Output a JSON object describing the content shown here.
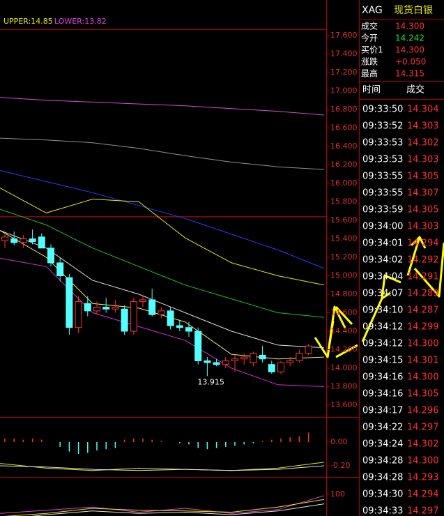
{
  "chart_data": [
    {
      "type": "candlestick",
      "legend": [
        "UPPER:14.85",
        "LOWER:13.82"
      ],
      "legend_colors": [
        "#e8e800",
        "#e040e0"
      ],
      "ylim": [
        13.6,
        17.6
      ],
      "yticks": [
        {
          "value": 17.6,
          "label": "17.600"
        },
        {
          "value": 17.4,
          "label": "17.400"
        },
        {
          "value": 17.2,
          "label": "17.200"
        },
        {
          "value": 17.0,
          "label": "17.000"
        },
        {
          "value": 16.8,
          "label": "16.800"
        },
        {
          "value": 16.6,
          "label": "16.600"
        },
        {
          "value": 16.4,
          "label": "16.400"
        },
        {
          "value": 16.2,
          "label": "16.200"
        },
        {
          "value": 16.0,
          "label": "16.000"
        },
        {
          "value": 15.8,
          "label": "15.800"
        },
        {
          "value": 15.6,
          "label": "15.600"
        },
        {
          "value": 15.4,
          "label": "15.400"
        },
        {
          "value": 15.2,
          "label": "15.200"
        },
        {
          "value": 15.0,
          "label": "15.000"
        },
        {
          "value": 14.8,
          "label": "14.800"
        },
        {
          "value": 14.6,
          "label": "14.600"
        },
        {
          "value": 14.4,
          "label": "14.400"
        },
        {
          "value": 14.2,
          "label": "14.200"
        },
        {
          "value": 14.0,
          "label": "14.000"
        },
        {
          "value": 13.8,
          "label": "13.800"
        },
        {
          "value": 13.6,
          "label": "13.600"
        }
      ],
      "reference_line": 15.64,
      "candles": {
        "open": [
          15.38,
          15.4,
          15.36,
          15.4,
          15.42,
          15.3,
          15.14,
          14.98,
          14.44,
          14.7,
          14.62,
          14.66,
          14.64,
          14.64,
          14.4,
          14.72,
          14.74,
          14.58,
          14.62,
          14.46,
          14.44,
          14.4,
          14.08,
          14.06,
          14.04,
          14.08,
          14.1,
          14.06,
          14.14,
          14.04,
          13.96,
          14.06,
          14.08,
          14.16
        ],
        "high": [
          15.46,
          15.48,
          15.44,
          15.5,
          15.46,
          15.34,
          15.2,
          15.02,
          14.78,
          14.78,
          14.72,
          14.76,
          14.74,
          14.68,
          14.76,
          14.78,
          14.86,
          14.66,
          14.66,
          14.52,
          14.5,
          14.44,
          14.12,
          14.1,
          14.12,
          14.14,
          14.16,
          14.18,
          14.24,
          14.08,
          14.08,
          14.12,
          14.2,
          14.26
        ],
        "low": [
          15.3,
          15.33,
          15.3,
          15.34,
          15.32,
          15.1,
          14.94,
          14.36,
          14.38,
          14.56,
          14.58,
          14.6,
          14.6,
          14.36,
          14.36,
          14.66,
          14.56,
          14.54,
          14.42,
          14.4,
          14.34,
          14.04,
          13.915,
          14.02,
          14.0,
          13.96,
          14.04,
          14.02,
          14.06,
          13.94,
          13.94,
          14.02,
          14.06,
          14.14
        ],
        "close": [
          15.42,
          15.36,
          15.4,
          15.37,
          15.3,
          15.14,
          15.0,
          14.44,
          14.72,
          14.62,
          14.66,
          14.64,
          14.66,
          14.4,
          14.72,
          14.74,
          14.58,
          14.62,
          14.46,
          14.44,
          14.4,
          14.08,
          14.06,
          14.04,
          14.08,
          14.1,
          14.12,
          14.16,
          14.1,
          13.96,
          14.06,
          14.08,
          14.16,
          14.24
        ]
      },
      "annotation": {
        "text": "13.915",
        "candle": 22
      },
      "up_color": "#ff3232",
      "down_color": "#54ffff",
      "series": [
        {
          "color": "#d050d0",
          "values": [
            16.93,
            16.9,
            16.88,
            16.86,
            16.84,
            16.81,
            16.78,
            16.74
          ]
        },
        {
          "color": "#909090",
          "values": [
            16.49,
            16.47,
            16.44,
            16.38,
            16.3,
            16.23,
            16.18,
            16.15
          ]
        },
        {
          "color": "#2040ff",
          "values": [
            16.14,
            16.02,
            15.9,
            15.76,
            15.62,
            15.45,
            15.28,
            15.08
          ]
        },
        {
          "color": "#e8e800",
          "values": [
            15.95,
            15.68,
            15.83,
            15.8,
            15.41,
            15.14,
            15.0,
            14.9
          ]
        },
        {
          "color": "#20c020",
          "values": [
            15.72,
            15.55,
            15.3,
            15.1,
            14.9,
            14.75,
            14.6,
            14.55
          ]
        },
        {
          "color": "#e0e0e0",
          "values": [
            15.49,
            15.3,
            14.95,
            14.8,
            14.6,
            14.4,
            14.25,
            14.22
          ]
        },
        {
          "color": "#f0f060",
          "values": [
            15.49,
            15.2,
            14.7,
            14.65,
            14.5,
            14.15,
            14.1,
            14.12
          ]
        },
        {
          "color": "#d030d0",
          "values": [
            15.19,
            15.1,
            14.6,
            14.45,
            14.3,
            14.0,
            13.82,
            13.8
          ]
        }
      ]
    },
    {
      "type": "histogram-lines",
      "ylim": [
        -0.3,
        0.2
      ],
      "yticks": [
        {
          "value": 0,
          "label": "0.00"
        },
        {
          "value": -0.2,
          "label": "-0.20"
        }
      ],
      "values": [
        0.03,
        0.03,
        0.02,
        0.03,
        0.02,
        0,
        -0.04,
        -0.08,
        -0.1,
        -0.09,
        -0.07,
        -0.06,
        -0.05,
        0.02,
        0.03,
        0.03,
        0.02,
        0.01,
        0,
        -0.01,
        -0.02,
        -0.05,
        -0.06,
        -0.05,
        -0.04,
        -0.03,
        -0.02,
        -0.01,
        0.01,
        0.02,
        0.03,
        0.04,
        0.05,
        0.08
      ],
      "up_color": "#ff3232",
      "down_color": "#54ffff",
      "series": [
        {
          "color": "#e8e800",
          "values": [
            -0.18,
            -0.22,
            -0.24,
            -0.22,
            -0.23,
            -0.24,
            -0.22,
            -0.17
          ]
        },
        {
          "color": "#e0e0e0",
          "values": [
            -0.2,
            -0.21,
            -0.23,
            -0.24,
            -0.23,
            -0.24,
            -0.23,
            -0.2
          ]
        }
      ]
    },
    {
      "type": "lines",
      "ylim": [
        0,
        100
      ],
      "yticks": [
        100
      ],
      "series": [
        {
          "color": "#e040e0",
          "values": [
            70,
            75,
            80,
            72,
            78,
            70,
            76,
            98
          ]
        },
        {
          "color": "#e8e800",
          "values": [
            65,
            70,
            78,
            75,
            74,
            72,
            80,
            92
          ]
        },
        {
          "color": "#e0e0e0",
          "values": [
            60,
            68,
            74,
            70,
            72,
            68,
            74,
            85
          ]
        }
      ]
    }
  ],
  "quote": {
    "symbol": "XAG",
    "name": "现货白银",
    "rows": [
      {
        "label": "成交",
        "value": "14.300",
        "color": "#ff3030"
      },
      {
        "label": "今开",
        "value": "14.242",
        "color": "#20e020"
      },
      {
        "label": "买价1",
        "value": "14.300",
        "color": "#ff3030"
      },
      {
        "label": "涨跌",
        "value": "+0.050",
        "color": "#ff3030"
      },
      {
        "label": "最高",
        "value": "14.315",
        "color": "#ff3030"
      }
    ]
  },
  "trades": {
    "headers": [
      "时间",
      "成交"
    ],
    "rows": [
      [
        "09:33:50",
        "14.304"
      ],
      [
        "09:33:52",
        "14.303"
      ],
      [
        "09:33:53",
        "14.302"
      ],
      [
        "09:33:53",
        "14.303"
      ],
      [
        "09:33:55",
        "14.305"
      ],
      [
        "09:33:55",
        "14.307"
      ],
      [
        "09:33:59",
        "14.305"
      ],
      [
        "09:34:00",
        "14.303"
      ],
      [
        "09:34:01",
        "14.294"
      ],
      [
        "09:34:02",
        "14.292"
      ],
      [
        "09:34:04",
        "14.291"
      ],
      [
        "09:34:07",
        "14.289"
      ],
      [
        "09:34:10",
        "14.287"
      ],
      [
        "09:34:12",
        "14.299"
      ],
      [
        "09:34:12",
        "14.300"
      ],
      [
        "09:34:15",
        "14.301"
      ],
      [
        "09:34:16",
        "14.300"
      ],
      [
        "09:34:16",
        "14.305"
      ],
      [
        "09:34:17",
        "14.296"
      ],
      [
        "09:34:22",
        "14.297"
      ],
      [
        "09:34:24",
        "14.302"
      ],
      [
        "09:34:28",
        "14.300"
      ],
      [
        "09:34:28",
        "14.293"
      ],
      [
        "09:34:30",
        "14.294"
      ],
      [
        "09:34:33",
        "14.297"
      ]
    ]
  }
}
